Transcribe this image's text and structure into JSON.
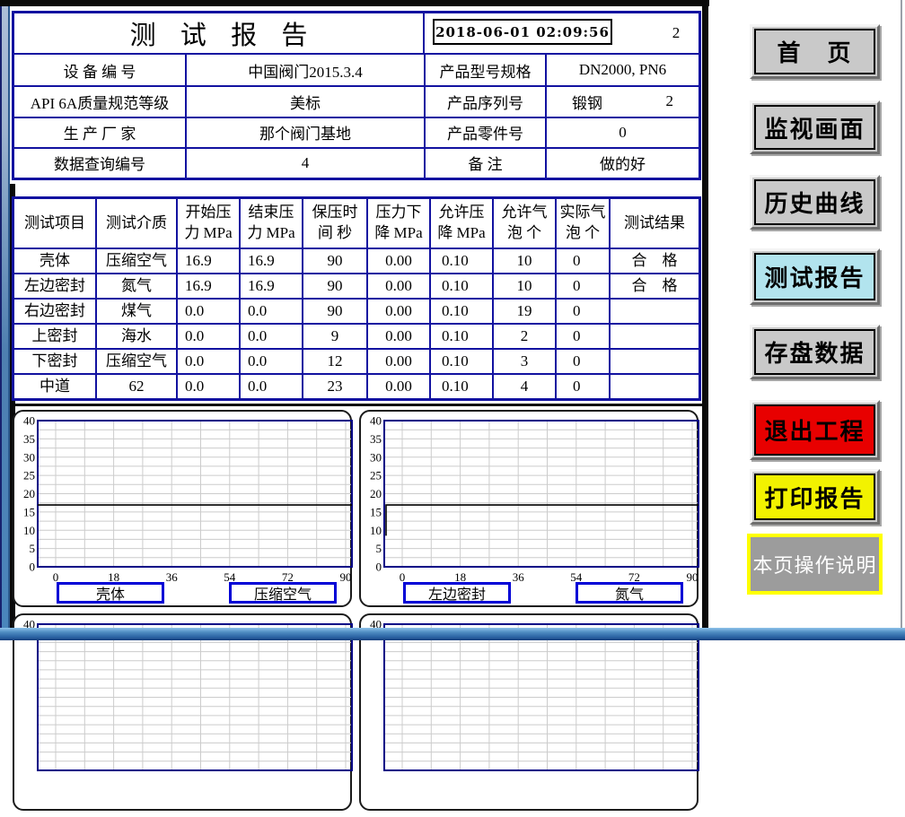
{
  "header": {
    "title": "测 试 报 告",
    "datetime": "2018-06-01  02:09:56",
    "count": "2",
    "rows": [
      {
        "label": "设 备 编 号",
        "value": "中国阀门2015.3.4",
        "label2": "产品型号规格",
        "value2": "DN2000, PN6"
      },
      {
        "label": "API 6A质量规范等级",
        "value": "美标",
        "label2": "产品序列号",
        "value2": "锻钢",
        "value2b": "2"
      },
      {
        "label": "生 产 厂 家",
        "value": "那个阀门基地",
        "label2": "产品零件号",
        "value2": "0"
      },
      {
        "label": "数据查询编号",
        "value": "4",
        "label2": "备 注",
        "value2": "做的好"
      }
    ]
  },
  "test_table": {
    "headers": [
      "测试项目",
      "测试介质",
      "开始压\n力 MPa",
      "结束压\n力 MPa",
      "保压时\n间 秒",
      "压力下\n降 MPa",
      "允许压\n降 MPa",
      "允许气\n泡 个",
      "实际气\n泡 个",
      "测试结果"
    ],
    "rows": [
      [
        "壳体",
        "压缩空气",
        "16.9",
        "16.9",
        "90",
        "0.00",
        "0.10",
        "10",
        "0",
        "合　格"
      ],
      [
        "左边密封",
        "氮气",
        "16.9",
        "16.9",
        "90",
        "0.00",
        "0.10",
        "10",
        "0",
        "合　格"
      ],
      [
        "右边密封",
        "煤气",
        "0.0",
        "0.0",
        "90",
        "0.00",
        "0.10",
        "19",
        "0",
        ""
      ],
      [
        "上密封",
        "海水",
        "0.0",
        "0.0",
        "9",
        "0.00",
        "0.10",
        "2",
        "0",
        ""
      ],
      [
        "下密封",
        "压缩空气",
        "0.0",
        "0.0",
        "12",
        "0.00",
        "0.10",
        "3",
        "0",
        ""
      ],
      [
        "中道",
        "62",
        "0.0",
        "0.0",
        "23",
        "0.00",
        "0.10",
        "4",
        "0",
        ""
      ]
    ]
  },
  "charts": [
    {
      "type": "line",
      "item": "壳体",
      "medium": "压缩空气",
      "ylim": [
        0,
        40
      ],
      "yticks": [
        "40",
        "35",
        "30",
        "25",
        "20",
        "15",
        "10",
        "5",
        "0"
      ],
      "xticks": [
        "0",
        "18",
        "36",
        "54",
        "72",
        "90"
      ],
      "pressure_line": 16.9,
      "rise_from": null,
      "partial": false
    },
    {
      "type": "line",
      "item": "左边密封",
      "medium": "氮气",
      "ylim": [
        0,
        40
      ],
      "yticks": [
        "40",
        "35",
        "30",
        "25",
        "20",
        "15",
        "10",
        "5",
        "0"
      ],
      "xticks": [
        "0",
        "18",
        "36",
        "54",
        "72",
        "90"
      ],
      "pressure_line": 16.9,
      "rise_from": 8.5,
      "partial": false
    },
    {
      "type": "line",
      "ylim": [
        0,
        40
      ],
      "yticks": [
        "40"
      ],
      "xticks": [],
      "pressure_line": null,
      "rise_from": null,
      "partial": true
    },
    {
      "type": "line",
      "ylim": [
        0,
        40
      ],
      "yticks": [
        "40"
      ],
      "xticks": [],
      "pressure_line": null,
      "rise_from": null,
      "partial": true
    }
  ],
  "buttons": [
    {
      "label": "首　页",
      "bg": "#c9c9c9",
      "fg": "#000000"
    },
    {
      "label": "监视画面",
      "bg": "#c9c9c9",
      "fg": "#000000"
    },
    {
      "label": "历史曲线",
      "bg": "#c9c9c9",
      "fg": "#000000"
    },
    {
      "label": "测试报告",
      "bg": "#b2e4ee",
      "fg": "#000000"
    },
    {
      "label": "存盘数据",
      "bg": "#c9c9c9",
      "fg": "#000000"
    },
    {
      "label": "退出工程",
      "bg": "#e80000",
      "fg": "#000000"
    },
    {
      "label": "打印报告",
      "bg": "#f2f200",
      "fg": "#000000"
    },
    {
      "label": "本页操作说明",
      "bg": "#9c9c9c",
      "fg": "#ffffff",
      "outline": "#ffff00"
    }
  ]
}
